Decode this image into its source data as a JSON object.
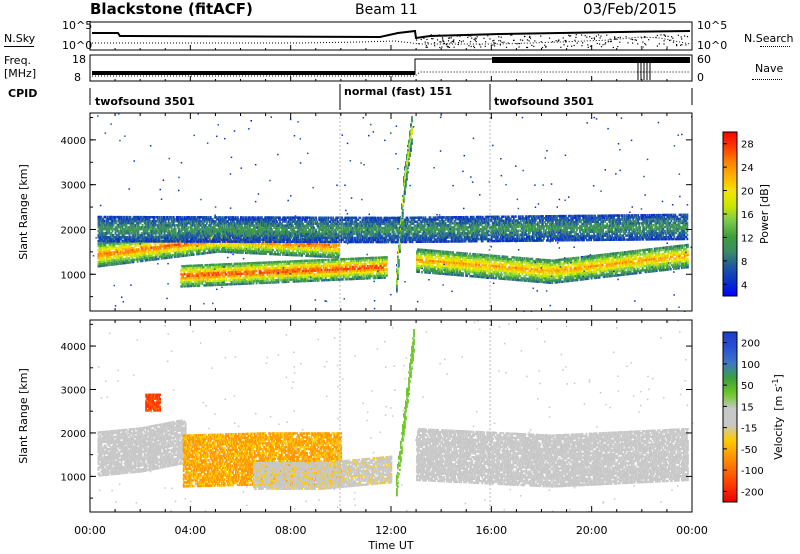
{
  "header": {
    "station": "Blackstone (fitACF)",
    "beam": "Beam 11",
    "date": "03/Feb/2015"
  },
  "side_labels": {
    "nsky": "N.Sky",
    "freq": "Freq.",
    "freq_unit": "[MHz]",
    "cpid": "CPID",
    "nsearch": "N.Search",
    "nave": "Nave"
  },
  "top_panels": {
    "noise_left_ticks": [
      "10^5",
      "10^0"
    ],
    "noise_right_ticks": [
      "10^5",
      "10^0"
    ],
    "freq_left_ticks": [
      "18",
      "8"
    ],
    "nave_right_ticks": [
      "60",
      "0"
    ]
  },
  "cpid_segments": [
    {
      "label": "twofsound 3501",
      "start": 0,
      "end": 10
    },
    {
      "label": "normal (fast) 151",
      "start": 10,
      "end": 16
    },
    {
      "label": "twofsound 3501",
      "start": 16,
      "end": 24
    }
  ],
  "axes": {
    "ylabel": "Slant Range [km]",
    "xlabel": "Time UT",
    "xticks": [
      "00:00",
      "04:00",
      "08:00",
      "12:00",
      "16:00",
      "20:00",
      "00:00"
    ],
    "yticks": [
      "1000",
      "2000",
      "3000",
      "4000"
    ]
  },
  "colorbars": {
    "power": {
      "label": "Power [dB]",
      "ticks": [
        "28",
        "24",
        "20",
        "16",
        "12",
        "8",
        "4"
      ],
      "colors": [
        "#ff0000",
        "#ff3b00",
        "#ff8000",
        "#ffb300",
        "#f2e600",
        "#c8e600",
        "#78c850",
        "#3ca03c",
        "#3c8c64",
        "#1e5aa0",
        "#0a32c8",
        "#0000ff"
      ]
    },
    "velocity": {
      "label_main": "Velocity",
      "label_unit": "[m s",
      "label_exp": "-1",
      "label_end": "]",
      "ticks": [
        "200",
        "100",
        "50",
        "15",
        "-15",
        "-50",
        "-100",
        "-200"
      ],
      "colors": [
        "#1e3cc8",
        "#2850d2",
        "#3c78c8",
        "#3ca03c",
        "#6ec828",
        "#c8c8c8",
        "#c8c8c8",
        "#ffcc00",
        "#ff9900",
        "#ff6600",
        "#ff3300",
        "#e60000"
      ]
    }
  },
  "chart_data": [
    {
      "type": "heatmap",
      "title": "Power",
      "xlabel": "Time UT",
      "ylabel": "Slant Range [km]",
      "xlim": [
        0,
        24
      ],
      "ylim": [
        180,
        4600
      ],
      "colorbar": {
        "label": "Power [dB]",
        "range": [
          0,
          30
        ]
      },
      "bands": [
        {
          "t": [
            0.3,
            9.9
          ],
          "r_center": [
            1420,
            1750,
            1620
          ],
          "width_km": 260,
          "db": 24
        },
        {
          "t": [
            3.6,
            11.8
          ],
          "r_center": [
            950,
            1050,
            1150
          ],
          "width_km": 240,
          "db": 26
        },
        {
          "t": [
            13.0,
            23.8
          ],
          "r_center": [
            1300,
            1050,
            1400
          ],
          "width_km": 260,
          "db": 22
        },
        {
          "t": [
            0.3,
            23.8
          ],
          "r_center": [
            2000,
            1980,
            2050
          ],
          "width_km": 280,
          "db": 8
        },
        {
          "t": [
            12.2,
            12.8
          ],
          "r_center": [
            900,
            3000,
            4200
          ],
          "width_km": 300,
          "db": 18
        }
      ]
    },
    {
      "type": "heatmap",
      "title": "Velocity",
      "xlabel": "Time UT",
      "ylabel": "Slant Range [km]",
      "xlim": [
        0,
        24
      ],
      "ylim": [
        180,
        4600
      ],
      "colorbar": {
        "label": "Velocity [m s-1]",
        "range": [
          -250,
          250
        ]
      },
      "bands": [
        {
          "t": [
            0.3,
            3.8
          ],
          "r_center": [
            1500,
            1600,
            1800
          ],
          "width_km": 500,
          "v": 0
        },
        {
          "t": [
            3.7,
            10.0
          ],
          "r_center": [
            1350,
            1400,
            1400
          ],
          "width_km": 600,
          "v": -120
        },
        {
          "t": [
            6.5,
            12.0
          ],
          "r_center": [
            1000,
            1000,
            1150
          ],
          "width_km": 300,
          "v": -55
        },
        {
          "t": [
            12.2,
            12.9
          ],
          "r_center": [
            800,
            2500,
            4200
          ],
          "width_km": 250,
          "v": 40
        },
        {
          "t": [
            13.0,
            23.8
          ],
          "r_center": [
            1500,
            1350,
            1500
          ],
          "width_km": 600,
          "v": 0
        },
        {
          "t": [
            2.2,
            2.8
          ],
          "r_center": [
            2700,
            2700,
            2700
          ],
          "width_km": 200,
          "v": -210
        }
      ]
    }
  ]
}
